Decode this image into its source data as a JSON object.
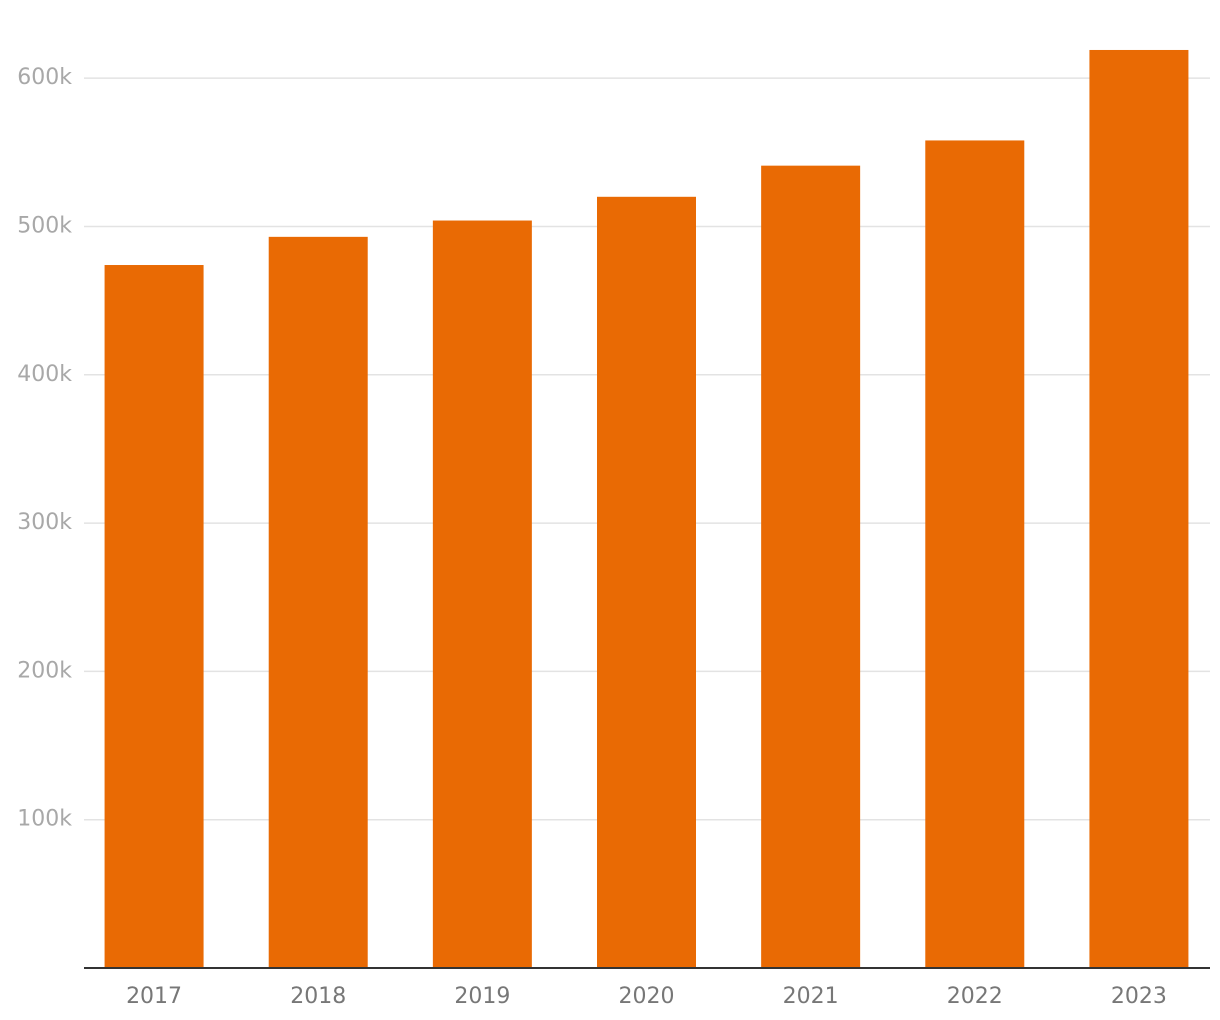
{
  "chart_data": {
    "type": "bar",
    "categories": [
      "2017",
      "2018",
      "2019",
      "2020",
      "2021",
      "2022",
      "2023"
    ],
    "values": [
      474000,
      493000,
      504000,
      520000,
      541000,
      558000,
      619000
    ],
    "color": "#e96a04",
    "ylim": [
      0,
      650000
    ],
    "yticks": [
      {
        "value": 100000,
        "label": "100k"
      },
      {
        "value": 200000,
        "label": "200k"
      },
      {
        "value": 300000,
        "label": "300k"
      },
      {
        "value": 400000,
        "label": "400k"
      },
      {
        "value": 500000,
        "label": "500k"
      },
      {
        "value": 600000,
        "label": "600k"
      }
    ],
    "grid": true
  }
}
